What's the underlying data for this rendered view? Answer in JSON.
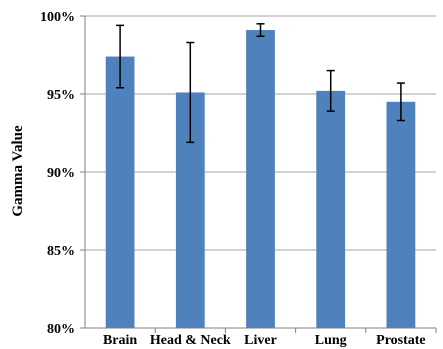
{
  "chart_data": {
    "type": "bar",
    "title": "",
    "xlabel": "",
    "ylabel": "Gamma Value",
    "categories": [
      "Brain",
      "Head & Neck",
      "Liver",
      "Lung",
      "Prostate"
    ],
    "series": [
      {
        "values": [
          97.4,
          95.1,
          99.1,
          95.2,
          94.5
        ],
        "error": [
          2.0,
          3.2,
          0.4,
          1.3,
          1.2
        ]
      }
    ],
    "ylim": [
      80,
      100
    ],
    "yticks": [
      80,
      85,
      90,
      95,
      100
    ],
    "ytick_labels": [
      "80%",
      "85%",
      "90%",
      "95%",
      "100%"
    ],
    "grid": true,
    "bar_color": "#4f81bd",
    "grid_color": "#a6a6a6",
    "axis_color": "#808080"
  }
}
